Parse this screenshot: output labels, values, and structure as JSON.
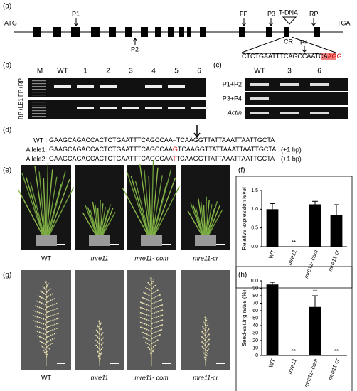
{
  "panels": {
    "a": "(a)",
    "b": "(b)",
    "c": "(c)",
    "d": "(d)",
    "e": "(e)",
    "f": "(f)",
    "g": "(g)",
    "h": "(h)"
  },
  "gene": {
    "start": "ATG",
    "end": "TGA",
    "p1": "P1",
    "p2": "P2",
    "fp": "FP",
    "p3": "P3",
    "tdna": "T-DNA",
    "rp": "RP",
    "cr": "CR",
    "p4": "P4",
    "sequence": "CTCTGAATTTCAGCCAATCA",
    "pam": "AGG"
  },
  "gel_b": {
    "lanes": [
      "M",
      "WT",
      "1",
      "2",
      "3",
      "4",
      "5",
      "6"
    ],
    "rows": [
      "FP+RP",
      "RP+LB1"
    ]
  },
  "gel_c": {
    "lanes": [
      "WT",
      "3",
      "6"
    ],
    "rows": [
      "P1+P2",
      "P3+P4",
      "Actin"
    ]
  },
  "alignment": {
    "rows": [
      {
        "label": "WT :",
        "prefix": "GAAGCAGACCACTCTGAATTTCAGCCAA",
        "insert": "–",
        "suffix": "TCAAGGTTATTAAATTAATTGCTA"
      },
      {
        "label": "Allele1:",
        "prefix": "GAAGCAGACCACTCTGAATTTCAGCCAA",
        "insert": "G",
        "suffix": "TCAAGGTTATTAAATTAATTGCTA",
        "note": "(+1 bp)"
      },
      {
        "label": "Allele2:",
        "prefix": "GAAGCAGACCACTCTGAATTTCAGCCAA",
        "insert": "T",
        "suffix": "TCAAGGTTATTAAATTAATTGCTA",
        "note": "(+1 bp)"
      }
    ]
  },
  "photos_e": [
    "WT",
    "mre11",
    "mre11- com",
    "mre11-cr"
  ],
  "photos_g": [
    "WT",
    "mre11",
    "mre11- com",
    "mre11-cr"
  ],
  "chart_data": [
    {
      "type": "bar",
      "y_label": "Relative expression level",
      "categories": [
        "WT",
        "mre11",
        "mre11- com",
        "mre11-cr"
      ],
      "values": [
        1.0,
        0,
        1.13,
        0.85
      ],
      "errors": [
        0.15,
        0,
        0.08,
        0.27
      ],
      "significance": [
        null,
        "**",
        null,
        null
      ],
      "color": "#000000",
      "ylim": [
        0,
        1.5
      ],
      "yticks": [
        {
          "value": 0,
          "label": "0.0"
        },
        {
          "value": 0.5,
          "label": "0.5"
        },
        {
          "value": 1,
          "label": "1.0"
        },
        {
          "value": 1.5,
          "label": "1.5"
        }
      ]
    },
    {
      "type": "bar",
      "y_label": "Seed-setting rates (%)",
      "categories": [
        "WT",
        "mre11",
        "mre11- com",
        "mre11-cr"
      ],
      "values": [
        95,
        0,
        65,
        0
      ],
      "errors": [
        3,
        0,
        15,
        0
      ],
      "significance": [
        null,
        "**",
        "**",
        "**"
      ],
      "color": "#000000",
      "ylim": [
        0,
        100
      ],
      "yticks": [
        0,
        10,
        20,
        30,
        40,
        50,
        60,
        70,
        80,
        90,
        100
      ]
    }
  ]
}
